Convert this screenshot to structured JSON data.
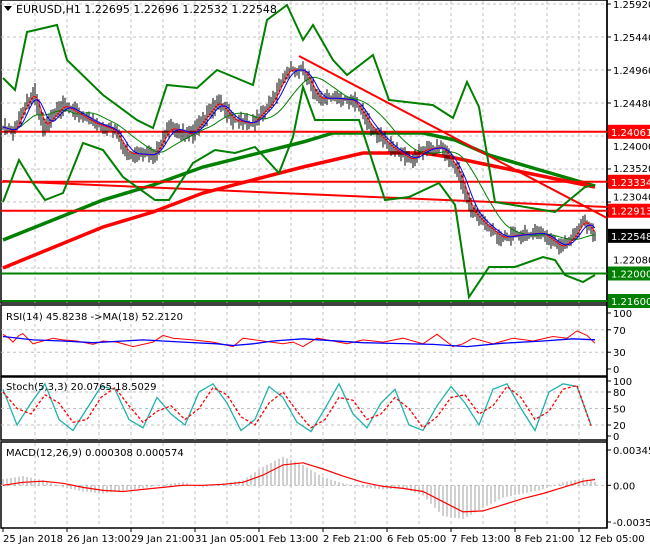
{
  "header": {
    "symbol": "EURUSD,H1",
    "open": "1.22695",
    "high": "1.22696",
    "low": "1.22532",
    "close": "1.22548"
  },
  "colors": {
    "bars": "#000000",
    "trend": "#ff0000",
    "band": "#008000",
    "ma_fast": "#ff0000",
    "ma_slow": "#0000ff",
    "stoch_main": "#20b2aa",
    "grid": "#c0c0c0",
    "price_box": "#000000"
  },
  "chart_data": [
    {
      "type": "line",
      "title": "EURUSD,H1",
      "ylim": [
        1.216,
        1.2592
      ],
      "bar_count": 303,
      "y_ticks": [
        "1.25920",
        "1.25440",
        "1.24960",
        "1.24480",
        "1.24000",
        "1.23520",
        "1.23040",
        "1.22080"
      ],
      "y_tick_values": [
        1.2592,
        1.2544,
        1.2496,
        1.2448,
        1.24,
        1.2352,
        1.2304,
        1.2208
      ],
      "x_ticks": [
        "25 Jan 2018",
        "26 Jan 13:00",
        "29 Jan 21:00",
        "31 Jan 05:00",
        "1 Feb 13:00",
        "2 Feb 21:00",
        "6 Feb 05:00",
        "7 Feb 13:00",
        "8 Feb 21:00",
        "12 Feb 05:00"
      ],
      "x_tick_bars": [
        0,
        32,
        64,
        96,
        128,
        160,
        192,
        224,
        256,
        288
      ],
      "close_path": [
        [
          0,
          1.2413
        ],
        [
          5,
          1.2405
        ],
        [
          10,
          1.244
        ],
        [
          15,
          1.2464
        ],
        [
          20,
          1.2413
        ],
        [
          30,
          1.2445
        ],
        [
          45,
          1.2419
        ],
        [
          55,
          1.2409
        ],
        [
          62,
          1.2375
        ],
        [
          75,
          1.2372
        ],
        [
          83,
          1.2412
        ],
        [
          94,
          1.2402
        ],
        [
          107,
          1.245
        ],
        [
          115,
          1.2423
        ],
        [
          124,
          1.2418
        ],
        [
          134,
          1.2448
        ],
        [
          142,
          1.2496
        ],
        [
          150,
          1.2496
        ],
        [
          157,
          1.2455
        ],
        [
          165,
          1.2455
        ],
        [
          175,
          1.2452
        ],
        [
          184,
          1.2412
        ],
        [
          194,
          1.2383
        ],
        [
          204,
          1.2365
        ],
        [
          210,
          1.238
        ],
        [
          219,
          1.2384
        ],
        [
          227,
          1.235
        ],
        [
          234,
          1.2292
        ],
        [
          240,
          1.2273
        ],
        [
          249,
          1.2252
        ],
        [
          257,
          1.2256
        ],
        [
          269,
          1.2259
        ],
        [
          279,
          1.2238
        ],
        [
          285,
          1.2253
        ],
        [
          290,
          1.2278
        ],
        [
          296,
          1.22548
        ]
      ],
      "bollinger_upper": [
        [
          0,
          1.24844
        ],
        [
          6,
          1.24669
        ],
        [
          12,
          1.25513
        ],
        [
          27,
          1.25615
        ],
        [
          32,
          1.25105
        ],
        [
          50,
          1.24596
        ],
        [
          67,
          1.24233
        ],
        [
          75,
          1.24116
        ],
        [
          82,
          1.24742
        ],
        [
          97,
          1.24698
        ],
        [
          107,
          1.2496
        ],
        [
          125,
          1.24742
        ],
        [
          132,
          1.25687
        ],
        [
          142,
          1.25905
        ],
        [
          150,
          1.25396
        ],
        [
          155,
          1.25615
        ],
        [
          165,
          1.25105
        ],
        [
          172,
          1.24887
        ],
        [
          185,
          1.25178
        ],
        [
          193,
          1.24524
        ],
        [
          215,
          1.2445
        ],
        [
          225,
          1.24262
        ],
        [
          232,
          1.24785
        ],
        [
          238,
          1.24422
        ],
        [
          246,
          1.2304
        ],
        [
          276,
          1.22895
        ],
        [
          291,
          1.23258
        ],
        [
          296,
          1.23287
        ]
      ],
      "bollinger_lower": [
        [
          0,
          1.2304
        ],
        [
          8,
          1.23651
        ],
        [
          15,
          1.23316
        ],
        [
          21,
          1.23069
        ],
        [
          30,
          1.23171
        ],
        [
          40,
          1.23898
        ],
        [
          50,
          1.23796
        ],
        [
          60,
          1.23404
        ],
        [
          76,
          1.23069
        ],
        [
          83,
          1.23069
        ],
        [
          95,
          1.23607
        ],
        [
          106,
          1.23796
        ],
        [
          116,
          1.23753
        ],
        [
          126,
          1.2384
        ],
        [
          138,
          1.23462
        ],
        [
          145,
          1.23985
        ],
        [
          150,
          1.24713
        ],
        [
          156,
          1.24233
        ],
        [
          178,
          1.24233
        ],
        [
          191,
          1.23069
        ],
        [
          203,
          1.23113
        ],
        [
          218,
          1.23316
        ],
        [
          226,
          1.23
        ],
        [
          233,
          1.21658
        ],
        [
          243,
          1.22095
        ],
        [
          256,
          1.22095
        ],
        [
          270,
          1.2224
        ],
        [
          276,
          1.22196
        ],
        [
          281,
          1.21978
        ],
        [
          290,
          1.21876
        ],
        [
          296,
          1.21978
        ]
      ],
      "ma_long_green": [
        [
          0,
          1.22487
        ],
        [
          50,
          1.23069
        ],
        [
          75,
          1.23287
        ],
        [
          100,
          1.23549
        ],
        [
          150,
          1.23913
        ],
        [
          165,
          1.24044
        ],
        [
          210,
          1.24044
        ],
        [
          226,
          1.23942
        ],
        [
          243,
          1.23724
        ],
        [
          265,
          1.23535
        ],
        [
          296,
          1.23273
        ]
      ],
      "ma_long_red": [
        [
          0,
          1.2208
        ],
        [
          50,
          1.22676
        ],
        [
          75,
          1.22895
        ],
        [
          100,
          1.23171
        ],
        [
          150,
          1.23549
        ],
        [
          180,
          1.23753
        ],
        [
          210,
          1.23753
        ],
        [
          226,
          1.2368
        ],
        [
          250,
          1.23535
        ],
        [
          296,
          1.23258
        ]
      ],
      "trendlines": [
        {
          "from": [
            148,
            1.25164
          ],
          "to": [
            303,
            1.22807
          ]
        },
        {
          "from": [
            0,
            1.23345
          ],
          "to": [
            303,
            1.22967
          ]
        }
      ],
      "levels": [
        {
          "price": 1.24061,
          "label": "1.24061",
          "color": "#ff0000"
        },
        {
          "price": 1.23334,
          "label": "1.23334",
          "color": "#ff0000"
        },
        {
          "price": 1.22913,
          "label": "1.22913",
          "color": "#ff0000"
        },
        {
          "price": 1.22,
          "label": "1.22000",
          "color": "#008000"
        },
        {
          "price": 1.216,
          "label": "1.21600",
          "color": "#008000"
        }
      ],
      "current_price": {
        "price": 1.22548,
        "label": "1.22548"
      }
    },
    {
      "type": "line",
      "title": "RSI(14) 45.8238   ->MA(18) 52.2120",
      "ylim": [
        0,
        100
      ],
      "y_ticks": [
        "100",
        "70",
        "30",
        "0"
      ],
      "y_tick_values": [
        100,
        70,
        30,
        0
      ],
      "levels": [
        70,
        30
      ],
      "rsi": [
        [
          0,
          62
        ],
        [
          3,
          55
        ],
        [
          5,
          48
        ],
        [
          8,
          60
        ],
        [
          10,
          63
        ],
        [
          15,
          45
        ],
        [
          20,
          50
        ],
        [
          25,
          55
        ],
        [
          30,
          52
        ],
        [
          37,
          50
        ],
        [
          45,
          44
        ],
        [
          50,
          50
        ],
        [
          57,
          48
        ],
        [
          65,
          40
        ],
        [
          75,
          48
        ],
        [
          80,
          60
        ],
        [
          85,
          55
        ],
        [
          95,
          52
        ],
        [
          105,
          48
        ],
        [
          115,
          40
        ],
        [
          120,
          55
        ],
        [
          130,
          50
        ],
        [
          140,
          45
        ],
        [
          145,
          48
        ],
        [
          150,
          40
        ],
        [
          157,
          55
        ],
        [
          165,
          50
        ],
        [
          172,
          45
        ],
        [
          180,
          52
        ],
        [
          190,
          48
        ],
        [
          200,
          55
        ],
        [
          210,
          45
        ],
        [
          217,
          62
        ],
        [
          225,
          40
        ],
        [
          230,
          45
        ],
        [
          235,
          55
        ],
        [
          245,
          45
        ],
        [
          255,
          55
        ],
        [
          265,
          50
        ],
        [
          275,
          58
        ],
        [
          282,
          55
        ],
        [
          287,
          68
        ],
        [
          292,
          60
        ],
        [
          296,
          45.8238
        ]
      ],
      "rsi_ma": [
        [
          0,
          58
        ],
        [
          15,
          52
        ],
        [
          30,
          50
        ],
        [
          45,
          47
        ],
        [
          70,
          52
        ],
        [
          90,
          48
        ],
        [
          107,
          45
        ],
        [
          115,
          42
        ],
        [
          125,
          45
        ],
        [
          135,
          50
        ],
        [
          150,
          54
        ],
        [
          180,
          47
        ],
        [
          215,
          44
        ],
        [
          232,
          40
        ],
        [
          250,
          46
        ],
        [
          270,
          50
        ],
        [
          285,
          54
        ],
        [
          296,
          52.212
        ]
      ]
    },
    {
      "type": "line",
      "title": "Stoch(5,3,3) 20.0765 18.5029",
      "ylim": [
        0,
        100
      ],
      "y_ticks": [
        "100",
        "80",
        "50",
        "20",
        "0"
      ],
      "y_tick_values": [
        100,
        80,
        50,
        20,
        0
      ],
      "step_bars": 7,
      "main": [
        85,
        20,
        60,
        95,
        30,
        10,
        50,
        90,
        85,
        30,
        15,
        70,
        40,
        20,
        80,
        95,
        60,
        10,
        30,
        90,
        70,
        25,
        8,
        50,
        95,
        40,
        15,
        60,
        85,
        20,
        10,
        55,
        90,
        60,
        20,
        85,
        95,
        50,
        10,
        80,
        95,
        90,
        20.0765
      ],
      "signal": [
        80,
        50,
        40,
        75,
        60,
        25,
        30,
        70,
        88,
        55,
        25,
        45,
        55,
        30,
        50,
        88,
        75,
        35,
        20,
        60,
        80,
        45,
        15,
        30,
        70,
        65,
        30,
        40,
        70,
        50,
        15,
        35,
        70,
        75,
        40,
        55,
        90,
        70,
        30,
        45,
        85,
        92,
        18.5029
      ]
    },
    {
      "type": "bar",
      "title": "MACD(12,26,9) 0.000308 0.000574",
      "ylim": [
        -0.003586,
        0.003456
      ],
      "y_ticks": [
        "0.003456",
        "0.00",
        "-0.003586"
      ],
      "y_tick_values": [
        0.003456,
        0,
        -0.003586
      ],
      "step_bars": 10,
      "histogram": [
        0.0006,
        0.0009,
        0.0005,
        -0.0002,
        -0.0006,
        -0.0008,
        -0.0005,
        -0.0003,
        0.0001,
        0.0003,
        -0.0002,
        0.0002,
        0.0005,
        0.0018,
        0.0028,
        0.002,
        0.0008,
        0.0002,
        -0.0002,
        -0.0004,
        -0.0003,
        -0.001,
        -0.003,
        -0.0033,
        -0.0022,
        -0.0012,
        -0.0008,
        -0.0004,
        0.0003,
        0.0007
      ],
      "signal": [
        0,
        0.0003,
        0.0004,
        0.0002,
        -0.0002,
        -0.0005,
        -0.0006,
        -0.0004,
        -0.0002,
        0,
        0,
        0.0001,
        0.0003,
        0.001,
        0.002,
        0.0022,
        0.0016,
        0.0009,
        0.0003,
        -0.0001,
        -0.0003,
        -0.0006,
        -0.0016,
        -0.0026,
        -0.0025,
        -0.0019,
        -0.0013,
        -0.0008,
        -0.0002,
        0.0004
      ],
      "last_histogram": 0.000308,
      "last_signal": 0.000574
    }
  ]
}
